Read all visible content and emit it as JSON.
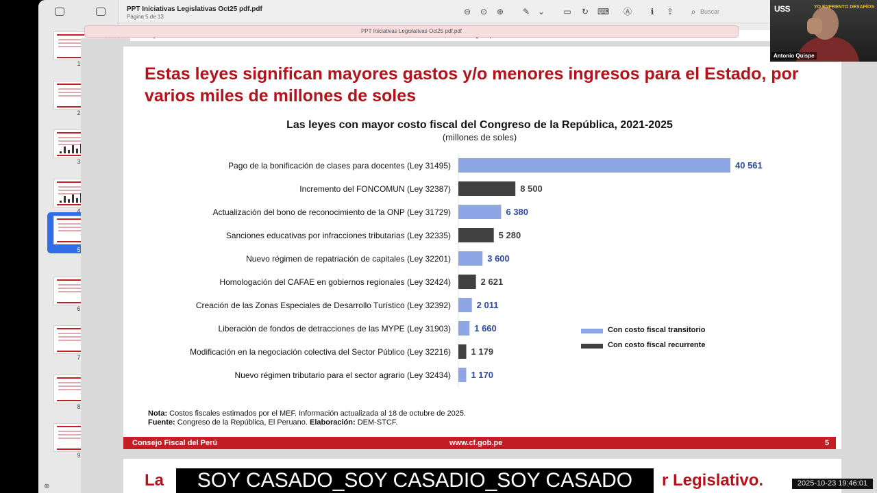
{
  "toolbar": {
    "doc_title": "PPT Iniciativas Legislativas Oct25 pdf.pdf",
    "page_indicator": "Página 5 de 13",
    "search_placeholder": "Buscar"
  },
  "tab": {
    "label": "PPT Iniciativas Legislativas Oct25 pdf.pdf"
  },
  "sidebar": {
    "pages": [
      "1",
      "2",
      "3",
      "4",
      "5",
      "6",
      "7",
      "8",
      "9"
    ],
    "selected_page": "5"
  },
  "slide": {
    "header_left": "Consejo Fiscal del Perú",
    "header_mid": "www.cf.gob.pe",
    "title": "Estas leyes significan mayores gastos y/o menores ingresos para el Estado, por varios miles de millones de soles",
    "note_label": "Nota:",
    "note_text": " Costos fiscales estimados por el MEF. Información actualizada al 18 de octubre de 2025.",
    "source_label": "Fuente:",
    "source_text": " Congreso de la República, El Peruano. ",
    "elab_label": "Elaboración:",
    "elab_text": " DEM-STCF.",
    "footer_left": "Consejo Fiscal del Perú",
    "footer_mid": "www.cf.gob.pe",
    "footer_page": "5"
  },
  "next_slide": {
    "text_left": "La",
    "text_right": "r Legislativo."
  },
  "caption": {
    "text": "SOY CASADO_SOY CASADIO_SOY CASADO"
  },
  "timestamp": {
    "text": "2025-10-23  19:46:01"
  },
  "webcam": {
    "logo": "USS",
    "logo_right": "YO ENFRENTO DESAFÍOS",
    "name": "Antonio Quispe"
  },
  "chart_data": {
    "type": "bar",
    "orientation": "horizontal",
    "title": "Las leyes con mayor costo fiscal del Congreso de la República, 2021-2025",
    "subtitle": "(millones de soles)",
    "categories": [
      "Pago de la bonificación de clases para docentes (Ley 31495)",
      "Incremento del FONCOMUN (Ley 32387)",
      "Actualización del bono de reconocimiento de la ONP (Ley 31729)",
      "Sanciones educativas por infracciones tributarias (Ley 32335)",
      "Nuevo régimen de repatriación de capitales (Ley 32201)",
      "Homologación del CAFAE en gobiernos regionales (Ley 32424)",
      "Creación de las Zonas Especiales de Desarrollo Turístico (Ley 32392)",
      "Liberación de fondos de detracciones de las MYPE (Ley 31903)",
      "Modificación en la negociación colectiva del Sector Público (Ley 32216)",
      "Nuevo régimen tributario para el sector agrario (Ley 32434)"
    ],
    "values": [
      40561,
      8500,
      6380,
      5280,
      3600,
      2621,
      2011,
      1660,
      1179,
      1170
    ],
    "value_labels": [
      "40 561",
      "8 500",
      "6 380",
      "5 280",
      "3 600",
      "2 621",
      "2 011",
      "1 660",
      "1 179",
      "1 170"
    ],
    "series_type": [
      "transitorio",
      "recurrente",
      "transitorio",
      "recurrente",
      "transitorio",
      "recurrente",
      "transitorio",
      "transitorio",
      "recurrente",
      "transitorio"
    ],
    "legend": [
      {
        "key": "transitorio",
        "name": "Con costo fiscal transitorio",
        "color": "#8fa6e6"
      },
      {
        "key": "recurrente",
        "name": "Con costo fiscal recurrente",
        "color": "#404040"
      }
    ],
    "label_colors": {
      "transitorio": "#2e4aa6",
      "recurrente": "#404040"
    },
    "xlim": [
      0,
      40561
    ],
    "legend_position": "right"
  }
}
